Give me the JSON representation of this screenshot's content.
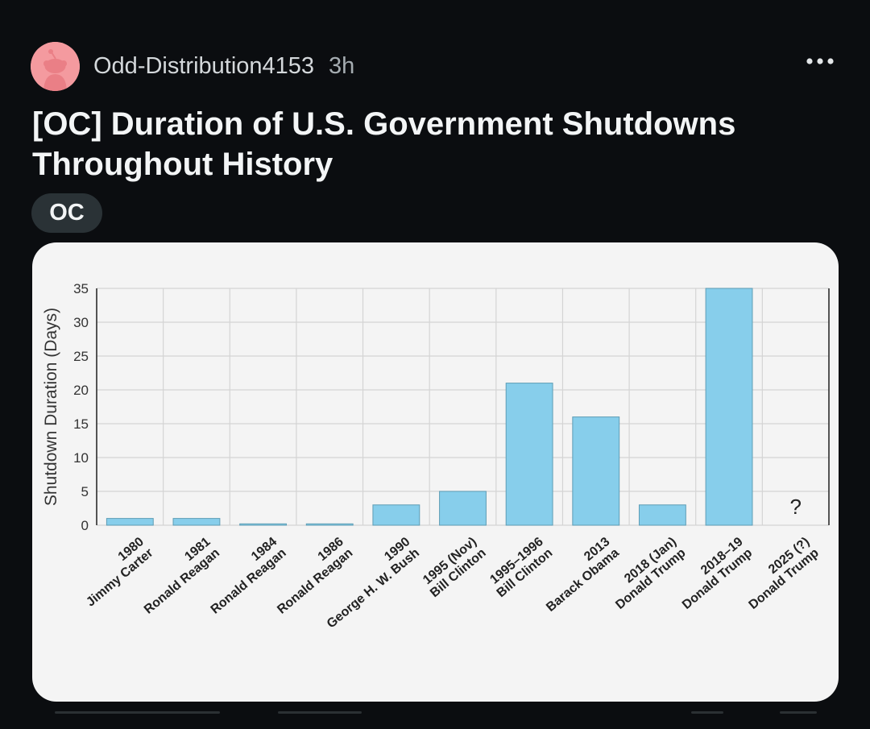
{
  "post": {
    "author": "Odd-Distribution4153",
    "time_ago": "3h",
    "title": "[OC] Duration of U.S. Government Shutdowns Throughout History",
    "flair": "OC"
  },
  "icons": {
    "avatar": "reddit-snoo-avatar-icon",
    "more": "more-horizontal-icon"
  },
  "colors": {
    "background": "#0b0d10",
    "avatar_bg": "#f49a9f",
    "flair_bg": "#2a3236",
    "bar": "#87ceeb",
    "card_bg": "#f4f4f4"
  },
  "chart_data": {
    "type": "bar",
    "ylabel": "Shutdown Duration (Days)",
    "xlabel": "",
    "ylim": [
      0,
      35
    ],
    "yticks": [
      0,
      5,
      10,
      15,
      20,
      25,
      30,
      35
    ],
    "grid": true,
    "categories": [
      [
        "1980",
        "Jimmy Carter"
      ],
      [
        "1981",
        "Ronald Reagan"
      ],
      [
        "1984",
        "Ronald Reagan"
      ],
      [
        "1986",
        "Ronald Reagan"
      ],
      [
        "1990",
        "George H. W. Bush"
      ],
      [
        "1995 (Nov)",
        "Bill Clinton"
      ],
      [
        "1995–1996",
        "Bill Clinton"
      ],
      [
        "2013",
        "Barack Obama"
      ],
      [
        "2018 (Jan)",
        "Donald Trump"
      ],
      [
        "2018–19",
        "Donald Trump"
      ],
      [
        "2025 (?)",
        "Donald Trump"
      ]
    ],
    "values": [
      1,
      1,
      0.2,
      0.2,
      3,
      5,
      21,
      16,
      3,
      35,
      null
    ],
    "annotations": [
      {
        "category_index": 10,
        "text": "?"
      }
    ]
  }
}
